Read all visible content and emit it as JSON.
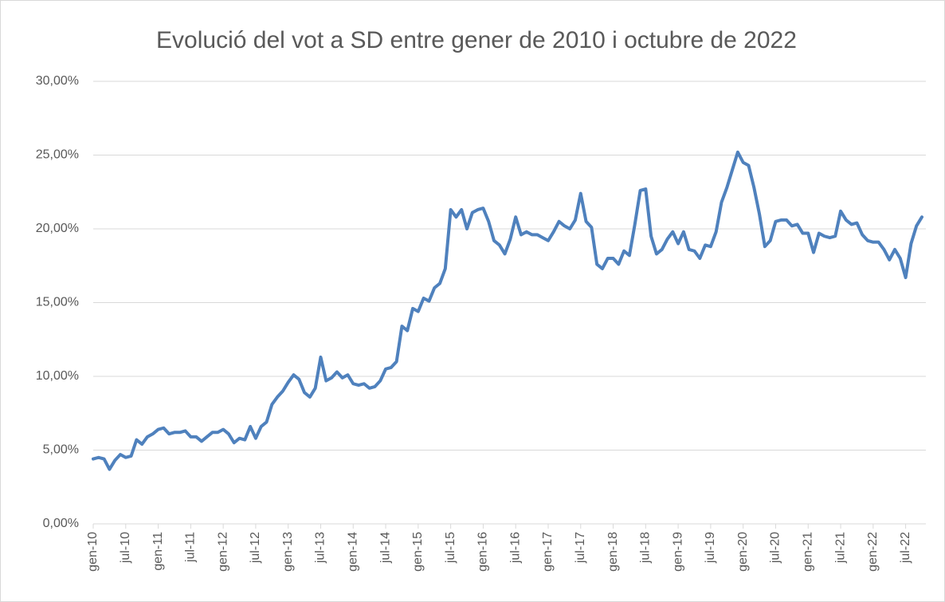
{
  "chart_data": {
    "type": "line",
    "title": "Evolució del vot a SD entre gener de 2010 i octubre de 2022",
    "categories": [
      "gen-10",
      null,
      null,
      null,
      null,
      null,
      "jul-10",
      null,
      null,
      null,
      null,
      null,
      "gen-11",
      null,
      null,
      null,
      null,
      null,
      "jul-11",
      null,
      null,
      null,
      null,
      null,
      "gen-12",
      null,
      null,
      null,
      null,
      null,
      "jul-12",
      null,
      null,
      null,
      null,
      null,
      "gen-13",
      null,
      null,
      null,
      null,
      null,
      "jul-13",
      null,
      null,
      null,
      null,
      null,
      "gen-14",
      null,
      null,
      null,
      null,
      null,
      "jul-14",
      null,
      null,
      null,
      null,
      null,
      "gen-15",
      null,
      null,
      null,
      null,
      null,
      "jul-15",
      null,
      null,
      null,
      null,
      null,
      "gen-16",
      null,
      null,
      null,
      null,
      null,
      "jul-16",
      null,
      null,
      null,
      null,
      null,
      "gen-17",
      null,
      null,
      null,
      null,
      null,
      "jul-17",
      null,
      null,
      null,
      null,
      null,
      "gen-18",
      null,
      null,
      null,
      null,
      null,
      "jul-18",
      null,
      null,
      null,
      null,
      null,
      "gen-19",
      null,
      null,
      null,
      null,
      null,
      "jul-19",
      null,
      null,
      null,
      null,
      null,
      "gen-20",
      null,
      null,
      null,
      null,
      null,
      "jul-20",
      null,
      null,
      null,
      null,
      null,
      "gen-21",
      null,
      null,
      null,
      null,
      null,
      "jul-21",
      null,
      null,
      null,
      null,
      null,
      "gen-22",
      null,
      null,
      null,
      null,
      null,
      "jul-22",
      null,
      null,
      null
    ],
    "values": [
      4.4,
      4.5,
      4.4,
      3.7,
      4.3,
      4.7,
      4.5,
      4.6,
      5.7,
      5.4,
      5.9,
      6.1,
      6.4,
      6.5,
      6.1,
      6.2,
      6.2,
      6.3,
      5.9,
      5.9,
      5.6,
      5.9,
      6.2,
      6.2,
      6.4,
      6.1,
      5.5,
      5.8,
      5.7,
      6.6,
      5.8,
      6.6,
      6.9,
      8.1,
      8.6,
      9.0,
      9.6,
      10.1,
      9.8,
      8.9,
      8.6,
      9.2,
      11.3,
      9.7,
      9.9,
      10.3,
      9.9,
      10.1,
      9.5,
      9.4,
      9.5,
      9.2,
      9.3,
      9.7,
      10.5,
      10.6,
      11.0,
      13.4,
      13.1,
      14.6,
      14.4,
      15.3,
      15.1,
      16.0,
      16.3,
      17.3,
      21.3,
      20.8,
      21.3,
      20.0,
      21.1,
      21.3,
      21.4,
      20.5,
      19.2,
      18.9,
      18.3,
      19.3,
      20.8,
      19.6,
      19.8,
      19.6,
      19.6,
      19.4,
      19.2,
      19.8,
      20.5,
      20.2,
      20.0,
      20.6,
      22.4,
      20.5,
      20.1,
      17.6,
      17.3,
      18.0,
      18.0,
      17.6,
      18.5,
      18.2,
      20.3,
      22.6,
      22.7,
      19.5,
      18.3,
      18.6,
      19.3,
      19.8,
      19.0,
      19.8,
      18.6,
      18.5,
      18.0,
      18.9,
      18.8,
      19.8,
      21.8,
      22.8,
      24.0,
      25.2,
      24.5,
      24.3,
      22.8,
      21.0,
      18.8,
      19.2,
      20.5,
      20.6,
      20.6,
      20.2,
      20.3,
      19.7,
      19.7,
      18.4,
      19.7,
      19.5,
      19.4,
      19.5,
      21.2,
      20.6,
      20.3,
      20.4,
      19.6,
      19.2,
      19.1,
      19.1,
      18.6,
      17.9,
      18.6,
      18.0,
      16.7,
      19.0,
      20.2,
      20.8
    ],
    "color": "#4f81bd",
    "ylim": [
      0,
      30
    ],
    "yticks": [
      {
        "value": 0,
        "label": "0,00%"
      },
      {
        "value": 5,
        "label": "5,00%"
      },
      {
        "value": 10,
        "label": "10,00%"
      },
      {
        "value": 15,
        "label": "15,00%"
      },
      {
        "value": 20,
        "label": "20,00%"
      },
      {
        "value": 25,
        "label": "25,00%"
      },
      {
        "value": 30,
        "label": "30,00%"
      }
    ],
    "grid": true
  }
}
